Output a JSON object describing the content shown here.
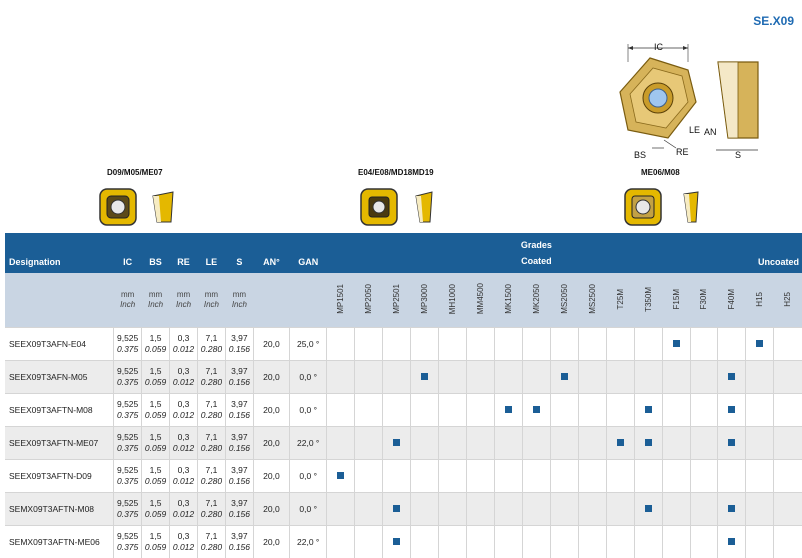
{
  "series_code": "SE.X09",
  "diagram_labels": {
    "ic": "IC",
    "le": "LE",
    "an": "AN",
    "bs": "BS",
    "re": "RE",
    "s": "S"
  },
  "variants": [
    {
      "label": "D09/M05/ME07"
    },
    {
      "label": "E04/E08/MD18MD19"
    },
    {
      "label": "ME06/M08"
    }
  ],
  "colors": {
    "header_blue": "#1b5e96",
    "subheader": "#c9d5e3",
    "accent_blue": "#1f6bb3",
    "insert_gold": "#e4b800"
  },
  "table": {
    "designation": "Designation",
    "dim_headers": [
      "IC",
      "BS",
      "RE",
      "LE",
      "S",
      "AN°",
      "GAN"
    ],
    "unit_mm": "mm",
    "unit_inch": "Inch",
    "grades_title": "Grades",
    "coated_label": "Coated",
    "uncoated_label": "Uncoated",
    "grades": [
      "MP1501",
      "MP2050",
      "MP2501",
      "MP3000",
      "MH1000",
      "MM4500",
      "MK1500",
      "MK2050",
      "MS2050",
      "MS2500",
      "T25M",
      "T350M",
      "F15M",
      "F30M",
      "F40M",
      "H15",
      "H25"
    ],
    "rows": [
      {
        "designation": "SEEX09T3AFN-E04",
        "ic": "9,525",
        "ic_in": "0.375",
        "bs": "1,5",
        "bs_in": "0.059",
        "re": "0,3",
        "re_in": "0.012",
        "le": "7,1",
        "le_in": "0.280",
        "s": "3,97",
        "s_in": "0.156",
        "an": "20,0",
        "gan": "25,0 °",
        "marks": [
          "F15M",
          "H15"
        ]
      },
      {
        "designation": "SEEX09T3AFN-M05",
        "ic": "9,525",
        "ic_in": "0.375",
        "bs": "1,5",
        "bs_in": "0.059",
        "re": "0,3",
        "re_in": "0.012",
        "le": "7,1",
        "le_in": "0.280",
        "s": "3,97",
        "s_in": "0.156",
        "an": "20,0",
        "gan": "0,0 °",
        "marks": [
          "MP3000",
          "MS2050",
          "F40M"
        ]
      },
      {
        "designation": "SEEX09T3AFTN-M08",
        "ic": "9,525",
        "ic_in": "0.375",
        "bs": "1,5",
        "bs_in": "0.059",
        "re": "0,3",
        "re_in": "0.012",
        "le": "7,1",
        "le_in": "0.280",
        "s": "3,97",
        "s_in": "0.156",
        "an": "20,0",
        "gan": "0,0 °",
        "marks": [
          "MK1500",
          "MK2050",
          "T350M",
          "F40M"
        ]
      },
      {
        "designation": "SEEX09T3AFTN-ME07",
        "ic": "9,525",
        "ic_in": "0.375",
        "bs": "1,5",
        "bs_in": "0.059",
        "re": "0,3",
        "re_in": "0.012",
        "le": "7,1",
        "le_in": "0.280",
        "s": "3,97",
        "s_in": "0.156",
        "an": "20,0",
        "gan": "22,0 °",
        "marks": [
          "MP2501",
          "T25M",
          "T350M",
          "F40M"
        ]
      },
      {
        "designation": "SEEX09T3AFTN-D09",
        "ic": "9,525",
        "ic_in": "0.375",
        "bs": "1,5",
        "bs_in": "0.059",
        "re": "0,3",
        "re_in": "0.012",
        "le": "7,1",
        "le_in": "0.280",
        "s": "3,97",
        "s_in": "0.156",
        "an": "20,0",
        "gan": "0,0 °",
        "marks": [
          "MP1501"
        ]
      },
      {
        "designation": "SEMX09T3AFTN-M08",
        "ic": "9,525",
        "ic_in": "0.375",
        "bs": "1,5",
        "bs_in": "0.059",
        "re": "0,3",
        "re_in": "0.012",
        "le": "7,1",
        "le_in": "0.280",
        "s": "3,97",
        "s_in": "0.156",
        "an": "20,0",
        "gan": "0,0 °",
        "marks": [
          "MP2501",
          "T350M",
          "F40M"
        ]
      },
      {
        "designation": "SEMX09T3AFTN-ME06",
        "ic": "9,525",
        "ic_in": "0.375",
        "bs": "1,5",
        "bs_in": "0.059",
        "re": "0,3",
        "re_in": "0.012",
        "le": "7,1",
        "le_in": "0.280",
        "s": "3,97",
        "s_in": "0.156",
        "an": "20,0",
        "gan": "22,0 °",
        "marks": [
          "MP2501",
          "F40M"
        ]
      }
    ]
  }
}
